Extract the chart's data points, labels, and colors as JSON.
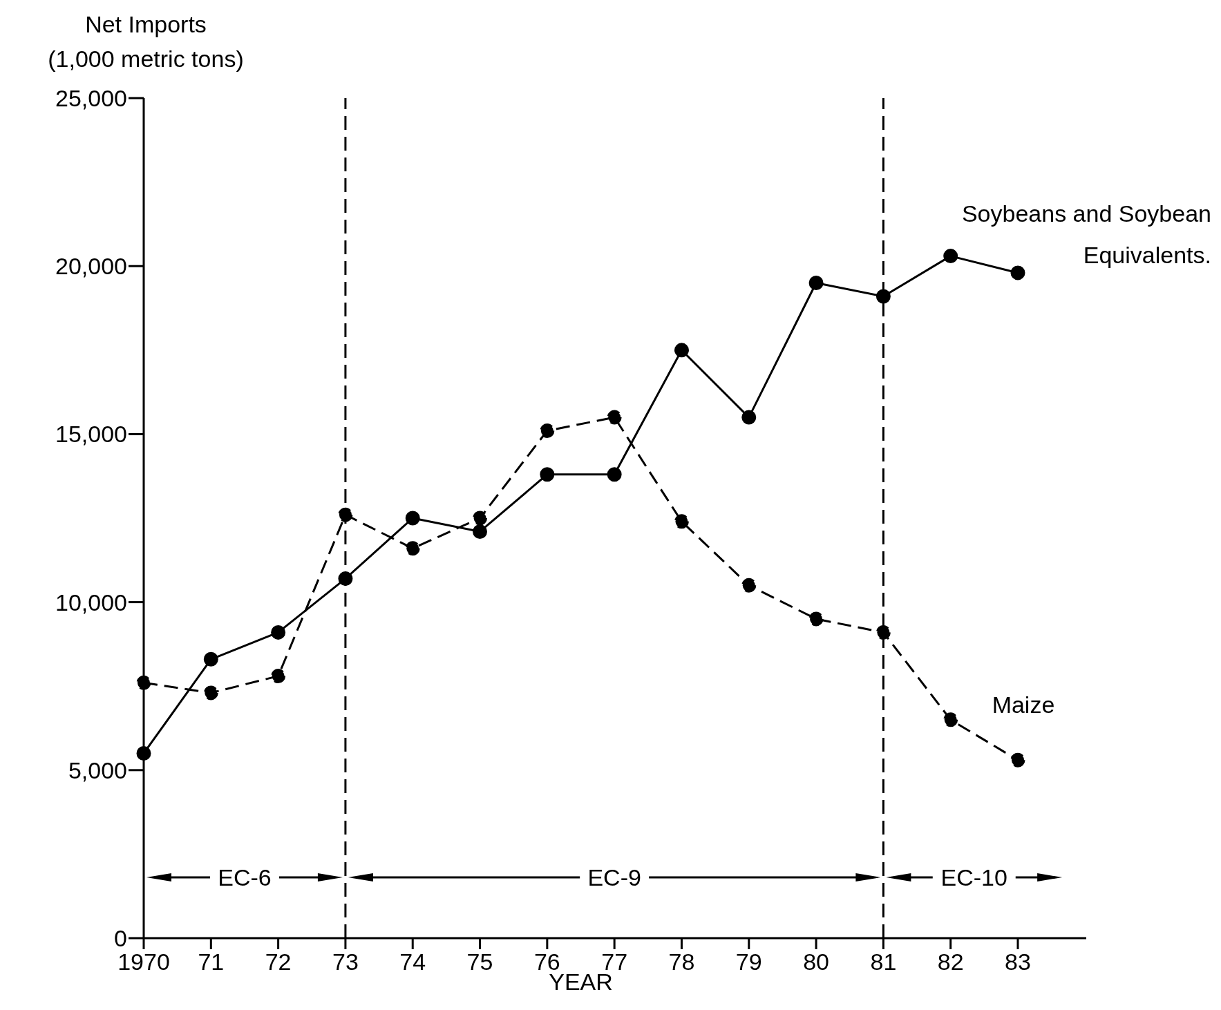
{
  "chart_data": {
    "type": "line",
    "ylabel": "Net Imports (1,000 metric tons)",
    "xlabel": "YEAR",
    "categories": [
      "1970",
      "71",
      "72",
      "73",
      "74",
      "75",
      "76",
      "77",
      "78",
      "79",
      "80",
      "81",
      "82",
      "83"
    ],
    "series": [
      {
        "name": "Soybeans and Soybean Equivalents.",
        "color": "#000000",
        "line_style": "solid",
        "values": [
          5500,
          8300,
          9100,
          10700,
          12500,
          12100,
          13800,
          13800,
          17500,
          15500,
          19500,
          19100,
          20300,
          19800
        ]
      },
      {
        "name": "Maize",
        "color": "#000000",
        "line_style": "dashed",
        "values": [
          7600,
          7300,
          7800,
          12600,
          11600,
          12500,
          15100,
          15500,
          12400,
          10500,
          9500,
          9100,
          6500,
          5300
        ]
      }
    ],
    "ylim": [
      0,
      25000
    ],
    "yticks": [
      0,
      {
        "value": 5000,
        "label": "5,000"
      },
      {
        "value": 10000,
        "label": "10,000"
      },
      {
        "value": 15000,
        "label": "15,000"
      },
      {
        "value": 20000,
        "label": "20,000"
      },
      {
        "value": 25000,
        "label": "25,000"
      }
    ],
    "ref_lines": [
      {
        "axis": "x",
        "value": "73",
        "line_style": "dashed",
        "color": "#000000"
      },
      {
        "axis": "x",
        "value": "81",
        "line_style": "dashed",
        "color": "#000000"
      }
    ],
    "annotations": [
      "EC-6",
      "EC-9",
      "EC-10"
    ],
    "marker": "circle",
    "grid": false,
    "legend": false
  }
}
